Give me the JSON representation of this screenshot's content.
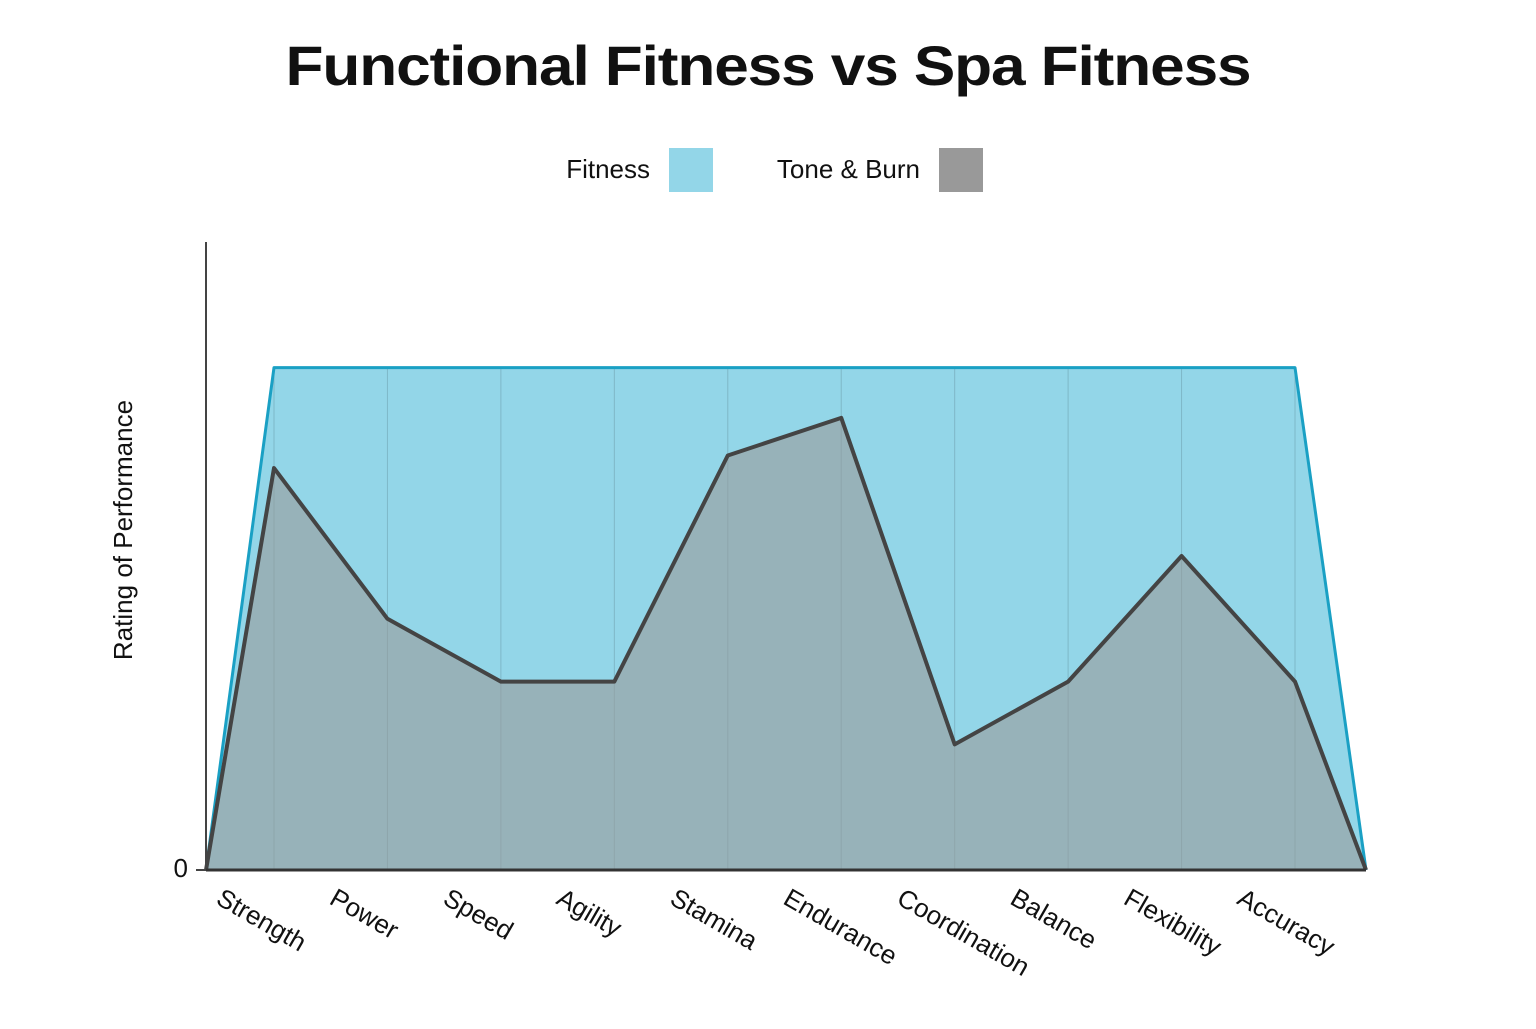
{
  "chart_data": {
    "type": "area",
    "title": "Functional Fitness vs Spa Fitness",
    "y_label": "Rating of Performance",
    "categories": [
      null,
      "Strength",
      "Power",
      "Speed",
      "Agility",
      "Stamina",
      "Endurance",
      "Coordination",
      "Balance",
      "Flexibility",
      "Accuracy",
      null
    ],
    "series": [
      {
        "name": "Fitness",
        "color": "#93d6e8",
        "line_color": "#1aa0c4",
        "values": [
          0,
          10,
          10,
          10,
          10,
          10,
          10,
          10,
          10,
          10,
          10,
          0
        ]
      },
      {
        "name": "Tone & Burn",
        "color": "#999999",
        "line_color": "#444444",
        "values": [
          0,
          8,
          5,
          3.75,
          3.75,
          8.25,
          9,
          2.5,
          3.75,
          6.25,
          3.75,
          0
        ]
      }
    ],
    "ylim": [
      0,
      12.5
    ],
    "yticks": [
      0
    ],
    "legend": "top"
  }
}
